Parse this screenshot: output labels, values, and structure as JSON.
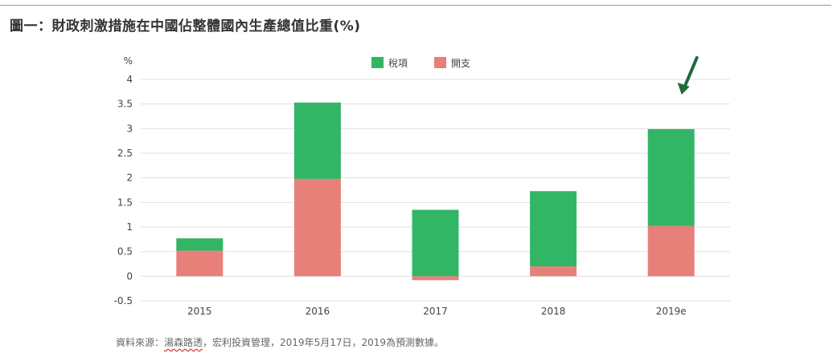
{
  "title": "圖一：財政刺激措施在中國佔整體國內生產總值比重(%)",
  "source": {
    "prefix": "資料來源：",
    "underlined": "湯森路透",
    "rest": "，宏利投資管理，2019年5月17日，2019為預測數據。"
  },
  "colors": {
    "tax": "#33b566",
    "spending": "#e8807a",
    "grid": "#e0e0e0",
    "arrow": "#1e6b3c",
    "text": "#444444"
  },
  "chart_data": {
    "type": "bar",
    "stacked": true,
    "y_unit_label": "%",
    "categories": [
      "2015",
      "2016",
      "2017",
      "2018",
      "2019e"
    ],
    "series": [
      {
        "name": "開支",
        "key": "spending",
        "values": [
          0.52,
          1.98,
          -0.08,
          0.2,
          1.02
        ]
      },
      {
        "name": "稅項",
        "key": "tax",
        "values": [
          0.25,
          1.55,
          1.35,
          1.53,
          1.97
        ]
      }
    ],
    "ylim": [
      -0.5,
      4
    ],
    "yticks": [
      -0.5,
      0,
      0.5,
      1,
      1.5,
      2,
      2.5,
      3,
      3.5,
      4
    ],
    "ytick_labels": [
      "-0.5",
      "0",
      "0.5",
      "1",
      "1.5",
      "2",
      "2.5",
      "3",
      "3.5",
      "4"
    ],
    "legend_order": [
      "稅項",
      "開支"
    ],
    "legend_position": "top-center",
    "grid": true,
    "annotation": {
      "type": "arrow",
      "target": "2019e"
    }
  }
}
